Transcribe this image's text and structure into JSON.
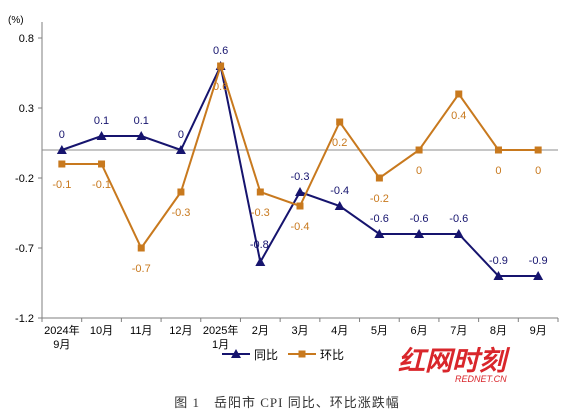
{
  "chart_data": {
    "type": "line",
    "unit": "(%)",
    "categories": [
      "2024年\n9月",
      "10月",
      "11月",
      "12月",
      "2025年\n1月",
      "2月",
      "3月",
      "4月",
      "5月",
      "6月",
      "7月",
      "8月",
      "9月"
    ],
    "series": [
      {
        "name": "同比",
        "color": "#16146e",
        "marker": "triangle",
        "values": [
          0,
          0.1,
          0.1,
          0,
          0.6,
          -0.8,
          -0.3,
          -0.4,
          -0.6,
          -0.6,
          -0.6,
          -0.9,
          -0.9
        ],
        "labels": [
          "0",
          "0.1",
          "0.1",
          "0",
          "0.6",
          "-0.8",
          "-0.3",
          "-0.4",
          "-0.6",
          "-0.6",
          "-0.6",
          "-0.9",
          "-0.9"
        ]
      },
      {
        "name": "环比",
        "color": "#c8791e",
        "marker": "square",
        "values": [
          -0.1,
          -0.1,
          -0.7,
          -0.3,
          0.6,
          -0.3,
          -0.4,
          0.2,
          -0.2,
          0,
          0.4,
          0,
          0
        ],
        "labels": [
          "-0.1",
          "-0.1",
          "-0.7",
          "-0.3",
          "0.6",
          "-0.3",
          "-0.4",
          "0.2",
          "-0.2",
          "0",
          "0.4",
          "0",
          "0"
        ]
      }
    ],
    "yticks": [
      "0.8",
      "0.3",
      "-0.2",
      "-0.7",
      "-1.2"
    ],
    "ylim": [
      -1.2,
      0.8
    ],
    "zero_line": true,
    "legend_position": "bottom-center",
    "caption": "图 1　岳阳市 CPI 同比、环比涨跌幅"
  },
  "watermark": {
    "main": "红网时刻",
    "sub": "REDNET.CN"
  }
}
